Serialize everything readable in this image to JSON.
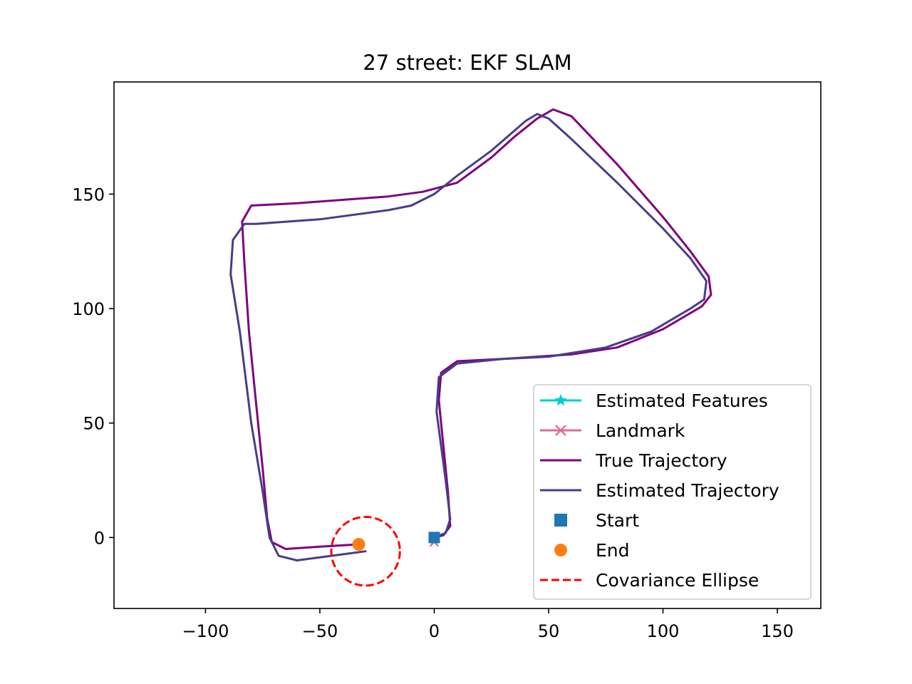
{
  "chart_data": {
    "type": "line",
    "title": "27 street: EKF SLAM",
    "xlabel": "",
    "ylabel": "",
    "xlim": [
      -140,
      169
    ],
    "ylim": [
      -31,
      199
    ],
    "xticks": [
      -100,
      -50,
      0,
      50,
      100,
      150
    ],
    "xtick_labels": [
      "−100",
      "−50",
      "0",
      "50",
      "100",
      "150"
    ],
    "yticks": [
      0,
      50,
      100,
      150
    ],
    "ytick_labels": [
      "0",
      "50",
      "100",
      "150"
    ],
    "grid": false,
    "legend_position": "lower-right",
    "series": [
      {
        "name": "True Trajectory",
        "color": "#800080",
        "points": [
          [
            -33,
            -3
          ],
          [
            -50,
            -4
          ],
          [
            -65,
            -5
          ],
          [
            -71,
            -2
          ],
          [
            -73,
            8
          ],
          [
            -75,
            30
          ],
          [
            -78,
            60
          ],
          [
            -81,
            90
          ],
          [
            -83,
            120
          ],
          [
            -84,
            138
          ],
          [
            -80,
            145
          ],
          [
            -60,
            146
          ],
          [
            -20,
            149
          ],
          [
            -5,
            151
          ],
          [
            10,
            155
          ],
          [
            25,
            166
          ],
          [
            35,
            175
          ],
          [
            45,
            183
          ],
          [
            52,
            187
          ],
          [
            60,
            184
          ],
          [
            80,
            163
          ],
          [
            100,
            140
          ],
          [
            112,
            125
          ],
          [
            120,
            114
          ],
          [
            121,
            106
          ],
          [
            117,
            101
          ],
          [
            100,
            91
          ],
          [
            80,
            83
          ],
          [
            60,
            80
          ],
          [
            30,
            78
          ],
          [
            10,
            77
          ],
          [
            3,
            72
          ],
          [
            2,
            60
          ],
          [
            4,
            40
          ],
          [
            6,
            20
          ],
          [
            7,
            5
          ],
          [
            4,
            1
          ],
          [
            0,
            0
          ]
        ]
      },
      {
        "name": "Estimated Trajectory",
        "color": "#483d8b",
        "points": [
          [
            -30,
            -6
          ],
          [
            -45,
            -8
          ],
          [
            -60,
            -10
          ],
          [
            -68,
            -8
          ],
          [
            -72,
            0
          ],
          [
            -75,
            20
          ],
          [
            -80,
            50
          ],
          [
            -85,
            90
          ],
          [
            -89,
            115
          ],
          [
            -88,
            130
          ],
          [
            -83,
            137
          ],
          [
            -78,
            137
          ],
          [
            -50,
            139
          ],
          [
            -20,
            143
          ],
          [
            -10,
            145
          ],
          [
            0,
            150
          ],
          [
            10,
            158
          ],
          [
            25,
            169
          ],
          [
            40,
            182
          ],
          [
            45,
            185
          ],
          [
            50,
            183
          ],
          [
            60,
            174
          ],
          [
            80,
            155
          ],
          [
            100,
            135
          ],
          [
            112,
            122
          ],
          [
            119,
            112
          ],
          [
            118,
            104
          ],
          [
            112,
            100
          ],
          [
            95,
            90
          ],
          [
            75,
            83
          ],
          [
            50,
            79
          ],
          [
            30,
            78
          ],
          [
            10,
            76
          ],
          [
            2,
            70
          ],
          [
            1,
            55
          ],
          [
            3,
            40
          ],
          [
            5,
            25
          ],
          [
            7,
            8
          ],
          [
            5,
            2
          ],
          [
            0,
            0
          ]
        ]
      }
    ],
    "markers": [
      {
        "name": "Estimated Features",
        "color": "#00ced1",
        "style": "star-line",
        "points": [
          [
            0,
            -1
          ]
        ]
      },
      {
        "name": "Landmark",
        "color": "#db7093",
        "style": "x-line",
        "points": [
          [
            0,
            -2
          ]
        ]
      },
      {
        "name": "Start",
        "color": "#1f77b4",
        "style": "square",
        "points": [
          [
            0,
            0
          ]
        ]
      },
      {
        "name": "End",
        "color": "#ff7f0e",
        "style": "circle",
        "points": [
          [
            -33,
            -3
          ]
        ]
      }
    ],
    "covariance_ellipse": {
      "name": "Covariance Ellipse",
      "color": "#ff0000",
      "style": "dashed",
      "center": [
        -30,
        -6
      ],
      "radius_x": 15,
      "radius_y": 15
    },
    "legend": [
      {
        "label": "Estimated Features",
        "color": "#00ced1",
        "kind": "star-line"
      },
      {
        "label": "Landmark",
        "color": "#db7093",
        "kind": "x-line"
      },
      {
        "label": "True Trajectory",
        "color": "#800080",
        "kind": "line"
      },
      {
        "label": "Estimated Trajectory",
        "color": "#483d8b",
        "kind": "line"
      },
      {
        "label": "Start",
        "color": "#1f77b4",
        "kind": "square"
      },
      {
        "label": "End",
        "color": "#ff7f0e",
        "kind": "circle"
      },
      {
        "label": "Covariance Ellipse",
        "color": "#ff0000",
        "kind": "dashed"
      }
    ]
  }
}
